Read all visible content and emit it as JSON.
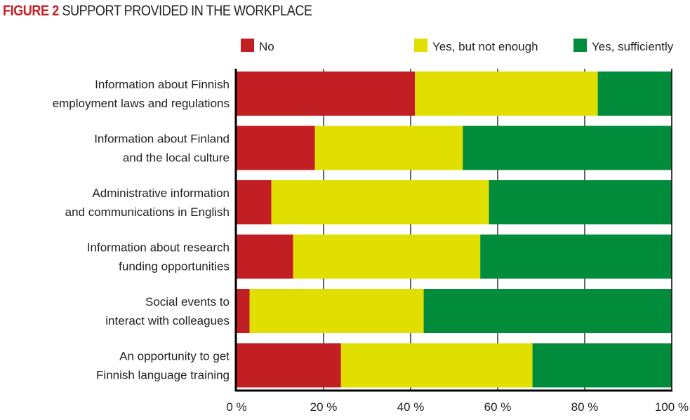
{
  "chart_data": {
    "type": "bar",
    "stacked": true,
    "orientation": "horizontal",
    "title_prefix": "FIGURE 2",
    "title": "SUPPORT PROVIDED IN THE WORKPLACE",
    "categories": [
      [
        "Information about Finnish",
        "employment laws and regulations"
      ],
      [
        "Information about Finland",
        "and the local culture"
      ],
      [
        "Administrative information",
        "and communications in English"
      ],
      [
        "Information about research",
        "funding opportunities"
      ],
      [
        "Social events to",
        "interact with colleagues"
      ],
      [
        "An opportunity to get",
        "Finnish language training"
      ]
    ],
    "series": [
      {
        "name": "No",
        "color": "#c21f24",
        "values": [
          41,
          18,
          8,
          13,
          3,
          24
        ]
      },
      {
        "name": "Yes, but not enough",
        "color": "#e0df00",
        "values": [
          42,
          34,
          50,
          43,
          40,
          44
        ]
      },
      {
        "name": "Yes, sufficiently",
        "color": "#008c3a",
        "values": [
          17,
          48,
          42,
          44,
          57,
          32
        ]
      }
    ],
    "xlim": [
      0,
      100
    ],
    "xticks": [
      "0 %",
      "20 %",
      "40 %",
      "60 %",
      "80 %",
      "100 %"
    ],
    "grid": true,
    "legend": "top"
  }
}
